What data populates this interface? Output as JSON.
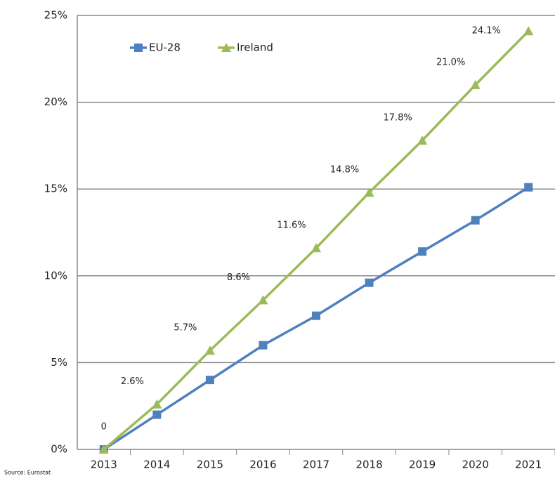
{
  "chart_data": {
    "type": "line",
    "categories": [
      "2013",
      "2014",
      "2015",
      "2016",
      "2017",
      "2018",
      "2019",
      "2020",
      "2021"
    ],
    "series": [
      {
        "name": "EU-28",
        "color": "#4f81bd",
        "marker": "square",
        "values": [
          0,
          2.0,
          4.0,
          6.0,
          7.7,
          9.6,
          11.4,
          13.2,
          15.1
        ]
      },
      {
        "name": "Ireland",
        "color": "#9bbb59",
        "marker": "triangle",
        "values": [
          0,
          2.6,
          5.7,
          8.6,
          11.6,
          14.8,
          17.8,
          21.0,
          24.1
        ],
        "value_labels": [
          "0",
          "2.6%",
          "5.7%",
          "8.6%",
          "11.6%",
          "14.8%",
          "17.8%",
          "21.0%",
          "24.1%"
        ]
      }
    ],
    "ylim": [
      0,
      25
    ],
    "yticks": [
      {
        "value": 0,
        "label": "0%"
      },
      {
        "value": 5,
        "label": "5%"
      },
      {
        "value": 10,
        "label": "10%"
      },
      {
        "value": 15,
        "label": "15%"
      },
      {
        "value": 20,
        "label": "20%"
      },
      {
        "value": 25,
        "label": "25%"
      }
    ],
    "grid": true,
    "legend": "top-left",
    "source": "Source: Eurostat"
  }
}
